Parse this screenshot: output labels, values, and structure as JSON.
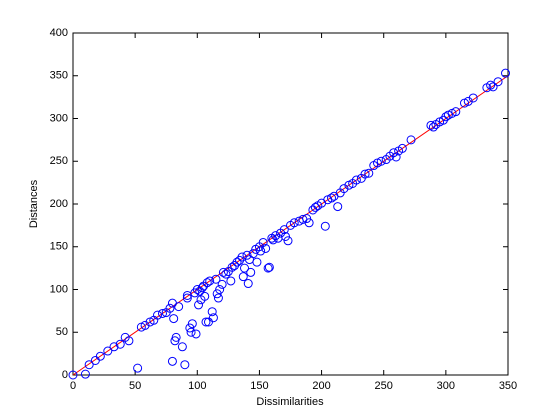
{
  "chart_data": {
    "type": "scatter",
    "xlabel": "Dissimilarities",
    "ylabel": "Distances",
    "xlim": [
      0,
      350
    ],
    "ylim": [
      0,
      400
    ],
    "xticks": [
      0,
      50,
      100,
      150,
      200,
      250,
      300,
      350
    ],
    "yticks": [
      0,
      50,
      100,
      150,
      200,
      250,
      300,
      350,
      400
    ],
    "color": "#0000ff",
    "x": [
      0,
      10,
      13,
      18,
      22,
      28,
      33,
      38,
      42,
      45,
      52,
      55,
      58,
      62,
      65,
      68,
      72,
      75,
      78,
      80,
      80,
      81,
      82,
      83,
      85,
      88,
      90,
      92,
      92,
      94,
      95,
      96,
      98,
      99,
      100,
      101,
      102,
      103,
      104,
      105,
      106,
      107,
      108,
      109,
      110,
      112,
      113,
      115,
      116,
      117,
      118,
      120,
      121,
      123,
      125,
      127,
      128,
      130,
      132,
      134,
      136,
      137,
      138,
      140,
      141,
      142,
      143,
      145,
      147,
      148,
      150,
      151,
      153,
      155,
      157,
      158,
      160,
      161,
      163,
      165,
      167,
      170,
      171,
      173,
      175,
      178,
      182,
      185,
      188,
      190,
      193,
      195,
      197,
      200,
      203,
      205,
      208,
      210,
      213,
      215,
      218,
      222,
      225,
      228,
      232,
      235,
      238,
      242,
      245,
      248,
      252,
      255,
      258,
      260,
      262,
      265,
      272,
      288,
      290,
      292,
      295,
      298,
      300,
      302,
      305,
      308,
      315,
      318,
      322,
      333,
      336,
      338,
      342,
      348
    ],
    "y": [
      0,
      1,
      12,
      17,
      22,
      28,
      33,
      36,
      44,
      40,
      8,
      56,
      58,
      62,
      64,
      70,
      72,
      73,
      78,
      84,
      16,
      66,
      40,
      44,
      80,
      33,
      12,
      90,
      93,
      55,
      50,
      60,
      96,
      48,
      100,
      82,
      98,
      88,
      102,
      104,
      92,
      62,
      108,
      62,
      110,
      74,
      67,
      112,
      95,
      90,
      100,
      106,
      120,
      118,
      121,
      110,
      126,
      128,
      132,
      134,
      138,
      115,
      125,
      140,
      107,
      135,
      120,
      142,
      147,
      132,
      150,
      145,
      155,
      148,
      125,
      126,
      160,
      158,
      163,
      160,
      166,
      170,
      162,
      157,
      175,
      178,
      180,
      182,
      183,
      178,
      193,
      196,
      198,
      201,
      174,
      205,
      207,
      209,
      197,
      213,
      218,
      222,
      224,
      228,
      230,
      235,
      236,
      245,
      248,
      250,
      252,
      256,
      260,
      255,
      262,
      265,
      275,
      292,
      290,
      293,
      296,
      298,
      302,
      304,
      306,
      308,
      318,
      320,
      324,
      336,
      339,
      337,
      343,
      353
    ],
    "fit_line": {
      "x": [
        0,
        350
      ],
      "y": [
        0,
        350
      ],
      "color": "#ff0000"
    }
  }
}
